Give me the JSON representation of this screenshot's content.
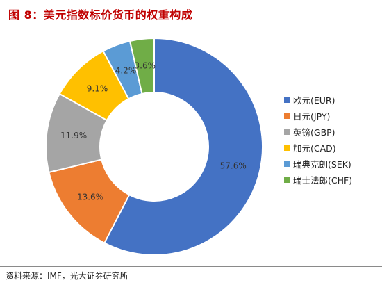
{
  "header": {
    "title": "图 8：美元指数标价货币的权重构成"
  },
  "footer": {
    "source": "资料来源：IMF，光大证券研究所"
  },
  "chart_data": {
    "type": "pie",
    "variant": "donut",
    "title": "图 8：美元指数标价货币的权重构成",
    "categories": [
      "欧元(EUR)",
      "日元(JPY)",
      "英镑(GBP)",
      "加元(CAD)",
      "瑞典克朗(SEK)",
      "瑞士法郎(CHF)"
    ],
    "values": [
      57.6,
      13.6,
      11.9,
      9.1,
      4.2,
      3.6
    ],
    "value_labels": [
      "57.6%",
      "13.6%",
      "11.9%",
      "9.1%",
      "4.2%",
      "3.6%"
    ],
    "colors": [
      "#4472c4",
      "#ed7d31",
      "#a5a5a5",
      "#ffc000",
      "#5b9bd5",
      "#70ad47"
    ],
    "legend_position": "right",
    "start_angle_deg": 0,
    "direction": "clockwise"
  }
}
